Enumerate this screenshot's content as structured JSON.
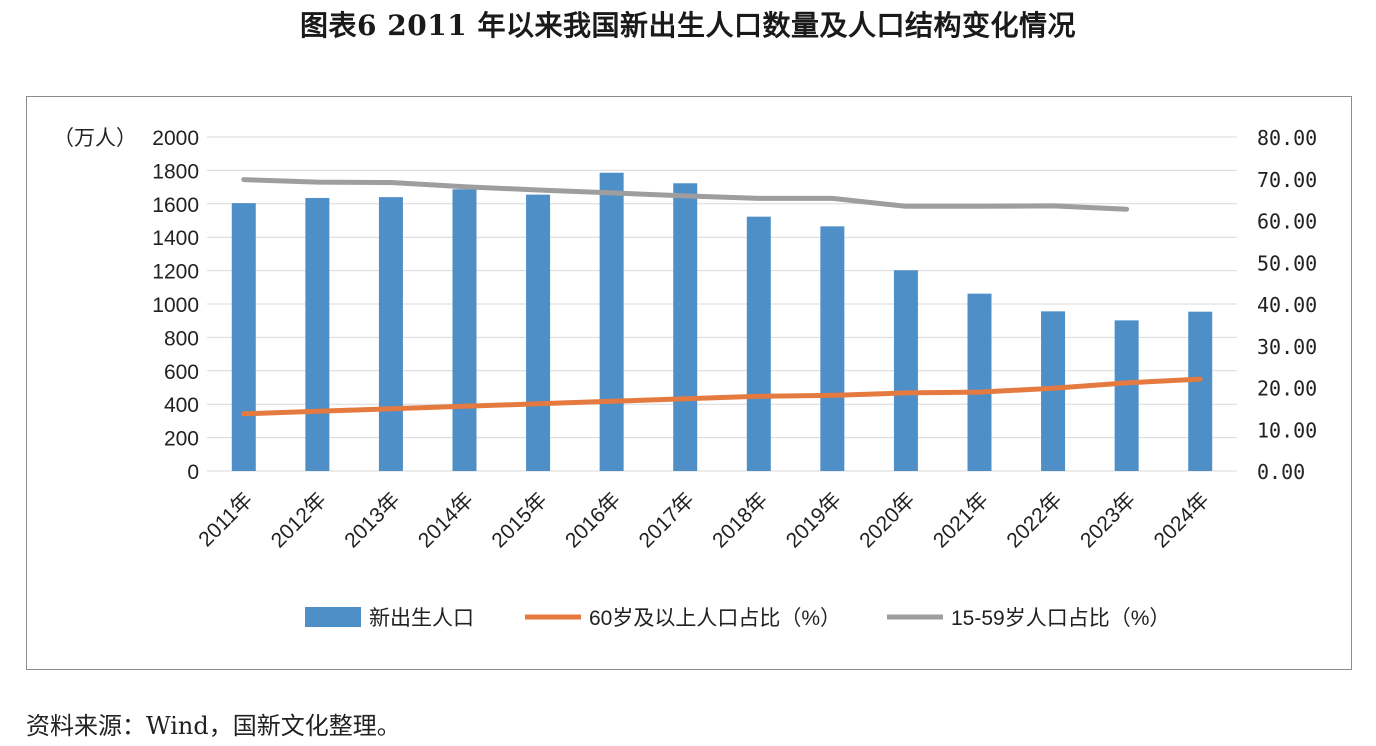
{
  "page": {
    "title": "图表6  2011 年以来我国新出生人口数量及人口结构变化情况",
    "source": "资料来源：Wind，国新文化整理。"
  },
  "chart_data": {
    "type": "bar",
    "categories": [
      "2011年",
      "2012年",
      "2013年",
      "2014年",
      "2015年",
      "2016年",
      "2017年",
      "2018年",
      "2019年",
      "2020年",
      "2021年",
      "2022年",
      "2023年",
      "2024年"
    ],
    "series": [
      {
        "name": "新出生人口",
        "type": "bar",
        "axis": "left",
        "color": "#4f8fc7",
        "values": [
          1604,
          1635,
          1640,
          1687,
          1655,
          1786,
          1723,
          1523,
          1465,
          1202,
          1062,
          956,
          902,
          954
        ]
      },
      {
        "name": "60岁及以上人口占比（%）",
        "type": "line",
        "axis": "right",
        "color": "#e47a3f",
        "values": [
          13.7,
          14.3,
          14.9,
          15.5,
          16.1,
          16.7,
          17.3,
          17.9,
          18.1,
          18.7,
          18.9,
          19.8,
          21.1,
          22.0
        ]
      },
      {
        "name": "15-59岁人口占比（%）",
        "type": "line",
        "axis": "right",
        "color": "#9e9e9e",
        "values": [
          69.8,
          69.2,
          69.1,
          68.1,
          67.3,
          66.6,
          65.9,
          65.3,
          65.3,
          63.4,
          63.4,
          63.5,
          62.7,
          null
        ]
      }
    ],
    "left_axis": {
      "unit_label": "（万人）",
      "ylim": [
        0,
        2000
      ],
      "ticks": [
        "0",
        "200",
        "400",
        "600",
        "800",
        "1000",
        "1200",
        "1400",
        "1600",
        "1800",
        "2000"
      ]
    },
    "right_axis": {
      "ylim": [
        0,
        80
      ],
      "ticks": [
        "0.00",
        "10.00",
        "20.00",
        "30.00",
        "40.00",
        "50.00",
        "60.00",
        "70.00",
        "80.00"
      ]
    },
    "grid": true,
    "legend_position": "bottom"
  }
}
